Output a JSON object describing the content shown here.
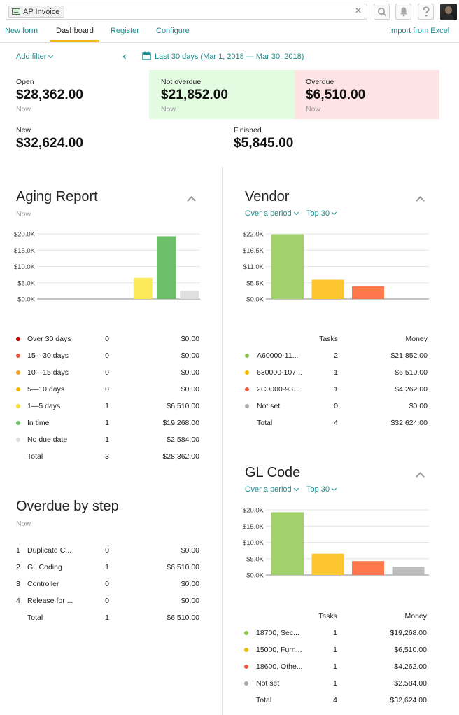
{
  "topbar": {
    "chip_label": "AP Invoice",
    "search_value": "",
    "clear_symbol": "×"
  },
  "tabs": [
    {
      "label": "New form",
      "active": false
    },
    {
      "label": "Dashboard",
      "active": true
    },
    {
      "label": "Register",
      "active": false
    },
    {
      "label": "Configure",
      "active": false
    }
  ],
  "import_label": "Import from Excel",
  "filters": {
    "add_filter": "Add filter",
    "date_range": "Last 30 days (Mar 1, 2018 — Mar 30, 2018)"
  },
  "stats": {
    "open": {
      "label": "Open",
      "value": "$28,362.00",
      "sub": "Now"
    },
    "not_overdue": {
      "label": "Not overdue",
      "value": "$21,852.00",
      "sub": "Now"
    },
    "overdue": {
      "label": "Overdue",
      "value": "$6,510.00",
      "sub": "Now"
    },
    "new": {
      "label": "New",
      "value": "$32,624.00"
    },
    "finished": {
      "label": "Finished",
      "value": "$5,845.00"
    }
  },
  "colors": {
    "teal": "#1a8c8c",
    "accent_tab": "#f2b51b",
    "not_overdue_bg": "#e3fbe0",
    "overdue_bg": "#fde3e3"
  },
  "aging": {
    "title": "Aging Report",
    "sub": "Now",
    "rows": [
      {
        "label": "Over 30 days",
        "count": "0",
        "money": "$0.00",
        "color": "#c00000"
      },
      {
        "label": "15—30 days",
        "count": "0",
        "money": "$0.00",
        "color": "#f05a3a"
      },
      {
        "label": "10—15 days",
        "count": "0",
        "money": "$0.00",
        "color": "#f5a623"
      },
      {
        "label": "5—10 days",
        "count": "0",
        "money": "$0.00",
        "color": "#f5b800"
      },
      {
        "label": "1—5 days",
        "count": "1",
        "money": "$6,510.00",
        "color": "#f7dc3b"
      },
      {
        "label": "In time",
        "count": "1",
        "money": "$19,268.00",
        "color": "#6dbf67"
      },
      {
        "label": "No due date",
        "count": "1",
        "money": "$2,584.00",
        "color": "#dddddd"
      }
    ],
    "total": {
      "label": "Total",
      "count": "3",
      "money": "$28,362.00"
    }
  },
  "overdue_by_step": {
    "title": "Overdue by step",
    "sub": "Now",
    "rows": [
      {
        "num": "1",
        "label": "Duplicate C...",
        "count": "0",
        "money": "$0.00"
      },
      {
        "num": "2",
        "label": "GL Coding",
        "count": "1",
        "money": "$6,510.00"
      },
      {
        "num": "3",
        "label": "Controller",
        "count": "0",
        "money": "$0.00"
      },
      {
        "num": "4",
        "label": "Release for ...",
        "count": "0",
        "money": "$0.00"
      }
    ],
    "total": {
      "label": "Total",
      "count": "1",
      "money": "$6,510.00"
    }
  },
  "vendor": {
    "title": "Vendor",
    "period": "Over a period",
    "top": "Top 30",
    "col_tasks": "Tasks",
    "col_money": "Money",
    "rows": [
      {
        "label": "A60000-11...",
        "count": "2",
        "money": "$21,852.00",
        "color": "#8bc34a"
      },
      {
        "label": "630000-107...",
        "count": "1",
        "money": "$6,510.00",
        "color": "#f5b800"
      },
      {
        "label": "2C0000-93...",
        "count": "1",
        "money": "$4,262.00",
        "color": "#f05a3a"
      },
      {
        "label": "Not set",
        "count": "0",
        "money": "$0.00",
        "color": "#aaaaaa"
      }
    ],
    "total": {
      "label": "Total",
      "count": "4",
      "money": "$32,624.00"
    }
  },
  "gl_code": {
    "title": "GL Code",
    "period": "Over a period",
    "top": "Top 30",
    "col_tasks": "Tasks",
    "col_money": "Money",
    "rows": [
      {
        "label": "18700, Sec...",
        "count": "1",
        "money": "$19,268.00",
        "color": "#8bc34a"
      },
      {
        "label": "15000, Furn...",
        "count": "1",
        "money": "$6,510.00",
        "color": "#f5b800"
      },
      {
        "label": "18600, Othe...",
        "count": "1",
        "money": "$4,262.00",
        "color": "#f05a3a"
      },
      {
        "label": "Not set",
        "count": "1",
        "money": "$2,584.00",
        "color": "#aaaaaa"
      }
    ],
    "total": {
      "label": "Total",
      "count": "4",
      "money": "$32,624.00"
    }
  },
  "chart_data": [
    {
      "type": "bar",
      "name": "aging",
      "categories": [
        "Over 30 days",
        "15—30 days",
        "10—15 days",
        "5—10 days",
        "1—5 days",
        "In time",
        "No due date"
      ],
      "values": [
        0,
        0,
        0,
        0,
        6510,
        19268,
        2584
      ],
      "colors": [
        "#c00000",
        "#f05a3a",
        "#f5a623",
        "#f5b800",
        "#fdea5a",
        "#6dbf6a",
        "#e0e0e0"
      ],
      "yticks": [
        "$0.0K",
        "$5.0K",
        "$10.0K",
        "$15.0K",
        "$20.0K"
      ],
      "ytick_values": [
        0,
        5000,
        10000,
        15000,
        20000
      ],
      "ylim": [
        0,
        20000
      ],
      "grid": true
    },
    {
      "type": "bar",
      "name": "vendor",
      "categories": [
        "A60000-11...",
        "630000-107...",
        "2C0000-93..."
      ],
      "values": [
        21852,
        6510,
        4262
      ],
      "colors": [
        "#a2d06a",
        "#fdc530",
        "#ff774c"
      ],
      "yticks": [
        "$0.0K",
        "$5.5K",
        "$11.0K",
        "$16.5K",
        "$22.0K"
      ],
      "ytick_values": [
        0,
        5500,
        11000,
        16500,
        22000
      ],
      "ylim": [
        0,
        22000
      ],
      "grid": true
    },
    {
      "type": "bar",
      "name": "gl_code",
      "categories": [
        "18700, Sec...",
        "15000, Furn...",
        "18600, Othe...",
        "Not set"
      ],
      "values": [
        19268,
        6510,
        4262,
        2584
      ],
      "colors": [
        "#a2d06a",
        "#fdc530",
        "#ff774c",
        "#bdbdbd"
      ],
      "yticks": [
        "$0.0K",
        "$5.0K",
        "$10.0K",
        "$15.0K",
        "$20.0K"
      ],
      "ytick_values": [
        0,
        5000,
        10000,
        15000,
        20000
      ],
      "ylim": [
        0,
        20000
      ],
      "grid": true
    }
  ]
}
